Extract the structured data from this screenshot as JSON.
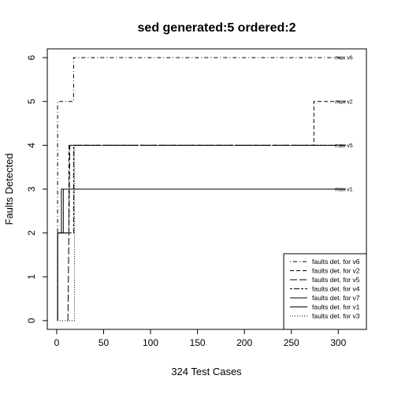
{
  "chart_data": {
    "type": "line",
    "title": "sed generated:5 ordered:2",
    "xlabel": "324 Test Cases",
    "ylabel": "Faults Detected",
    "xlim": [
      -10,
      330
    ],
    "ylim": [
      -0.2,
      6.2
    ],
    "x_ticks": [
      0,
      50,
      100,
      150,
      200,
      250,
      300
    ],
    "y_ticks": [
      0,
      1,
      2,
      3,
      4,
      5,
      6
    ],
    "grid": false,
    "legend_position": "bottom-right",
    "series": [
      {
        "name": "faults det. for v6",
        "dash": "dotdash",
        "steps": [
          [
            1,
            0
          ],
          [
            1,
            5
          ],
          [
            18,
            5
          ],
          [
            18,
            6
          ],
          [
            308,
            6
          ]
        ]
      },
      {
        "name": "faults det. for v2",
        "dash": "dashed",
        "steps": [
          [
            1,
            0
          ],
          [
            1,
            2
          ],
          [
            13,
            2
          ],
          [
            13,
            4
          ],
          [
            274,
            4
          ],
          [
            274,
            5
          ],
          [
            308,
            5
          ]
        ]
      },
      {
        "name": "faults det. for v5",
        "dash": "longdash",
        "steps": [
          [
            12,
            0
          ],
          [
            13,
            2
          ],
          [
            14,
            4
          ],
          [
            308,
            4
          ]
        ]
      },
      {
        "name": "faults det. for v4",
        "dash": "twodash",
        "steps": [
          [
            1,
            0
          ],
          [
            1,
            2
          ],
          [
            18,
            2
          ],
          [
            18,
            4
          ],
          [
            308,
            4
          ]
        ]
      },
      {
        "name": "faults det. for v7",
        "dash": "solid",
        "steps": [
          [
            1,
            0
          ],
          [
            1,
            2
          ],
          [
            7,
            2
          ],
          [
            7,
            3
          ],
          [
            308,
            3
          ]
        ]
      },
      {
        "name": "faults det. for v1",
        "dash": "solid",
        "steps": [
          [
            1,
            0
          ],
          [
            1,
            2
          ],
          [
            5,
            2
          ],
          [
            5,
            3
          ],
          [
            308,
            3
          ]
        ]
      },
      {
        "name": "faults det. for v3",
        "dash": "dotted",
        "steps": [
          [
            1,
            0
          ],
          [
            19,
            0
          ],
          [
            19,
            4
          ],
          [
            308,
            4
          ]
        ]
      }
    ],
    "max_labels": [
      {
        "text": "max v6",
        "y": 6
      },
      {
        "text": "max v2",
        "y": 5
      },
      {
        "text": "max v5",
        "y": 4
      },
      {
        "text": "max v1",
        "y": 3
      }
    ]
  }
}
